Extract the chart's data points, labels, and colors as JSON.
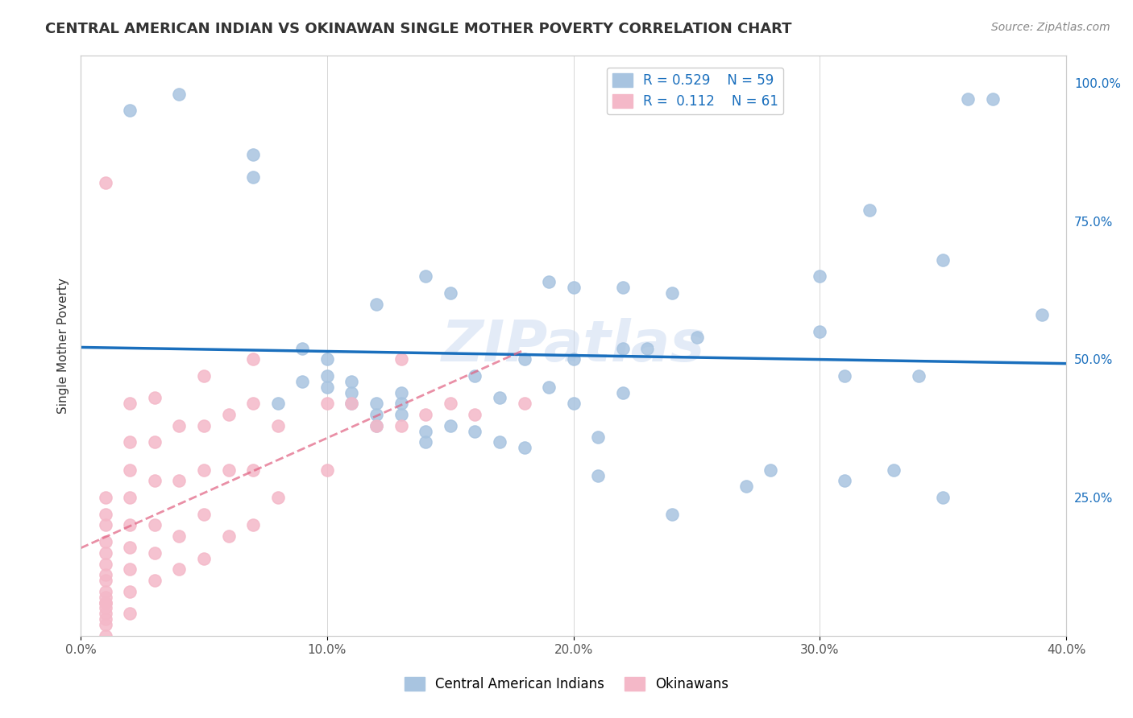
{
  "title": "CENTRAL AMERICAN INDIAN VS OKINAWAN SINGLE MOTHER POVERTY CORRELATION CHART",
  "source": "Source: ZipAtlas.com",
  "xlabel": "",
  "ylabel": "Single Mother Poverty",
  "xlim": [
    0.0,
    0.4
  ],
  "ylim": [
    0.0,
    1.05
  ],
  "xticks": [
    0.0,
    0.1,
    0.2,
    0.3,
    0.4
  ],
  "xtick_labels": [
    "0.0%",
    "10.0%",
    "20.0%",
    "30.0%",
    "40.0%"
  ],
  "yticks": [
    0.0,
    0.25,
    0.5,
    0.75,
    1.0
  ],
  "ytick_labels": [
    "",
    "25.0%",
    "50.0%",
    "75.0%",
    "100.0%"
  ],
  "legend_blue_R": "0.529",
  "legend_blue_N": "59",
  "legend_pink_R": "0.112",
  "legend_pink_N": "61",
  "legend_labels": [
    "Central American Indians",
    "Okinawans"
  ],
  "watermark": "ZIPatlas",
  "blue_color": "#a8c4e0",
  "blue_line_color": "#1a6fbd",
  "pink_color": "#f4b8c8",
  "pink_line_color": "#e06080",
  "grid_color": "#cccccc",
  "blue_scatter_x": [
    0.02,
    0.04,
    0.07,
    0.07,
    0.08,
    0.09,
    0.09,
    0.1,
    0.1,
    0.1,
    0.11,
    0.11,
    0.11,
    0.12,
    0.12,
    0.12,
    0.12,
    0.13,
    0.13,
    0.13,
    0.14,
    0.14,
    0.14,
    0.15,
    0.15,
    0.16,
    0.16,
    0.17,
    0.17,
    0.18,
    0.18,
    0.19,
    0.19,
    0.2,
    0.2,
    0.2,
    0.21,
    0.21,
    0.22,
    0.22,
    0.22,
    0.23,
    0.24,
    0.24,
    0.25,
    0.27,
    0.28,
    0.3,
    0.3,
    0.31,
    0.31,
    0.32,
    0.33,
    0.34,
    0.35,
    0.35,
    0.36,
    0.37,
    0.39
  ],
  "blue_scatter_y": [
    0.95,
    0.98,
    0.83,
    0.87,
    0.42,
    0.46,
    0.52,
    0.45,
    0.47,
    0.5,
    0.42,
    0.44,
    0.46,
    0.38,
    0.4,
    0.42,
    0.6,
    0.4,
    0.42,
    0.44,
    0.35,
    0.37,
    0.65,
    0.38,
    0.62,
    0.37,
    0.47,
    0.35,
    0.43,
    0.34,
    0.5,
    0.45,
    0.64,
    0.42,
    0.5,
    0.63,
    0.29,
    0.36,
    0.44,
    0.52,
    0.63,
    0.52,
    0.22,
    0.62,
    0.54,
    0.27,
    0.3,
    0.65,
    0.55,
    0.28,
    0.47,
    0.77,
    0.3,
    0.47,
    0.25,
    0.68,
    0.97,
    0.97,
    0.58
  ],
  "pink_scatter_x": [
    0.01,
    0.01,
    0.01,
    0.01,
    0.01,
    0.01,
    0.01,
    0.01,
    0.01,
    0.01,
    0.01,
    0.01,
    0.01,
    0.01,
    0.01,
    0.01,
    0.01,
    0.01,
    0.02,
    0.02,
    0.02,
    0.02,
    0.02,
    0.02,
    0.02,
    0.02,
    0.02,
    0.03,
    0.03,
    0.03,
    0.03,
    0.03,
    0.03,
    0.04,
    0.04,
    0.04,
    0.04,
    0.05,
    0.05,
    0.05,
    0.05,
    0.05,
    0.06,
    0.06,
    0.06,
    0.07,
    0.07,
    0.07,
    0.07,
    0.08,
    0.08,
    0.1,
    0.1,
    0.11,
    0.12,
    0.13,
    0.13,
    0.14,
    0.15,
    0.16,
    0.18
  ],
  "pink_scatter_y": [
    0.0,
    0.02,
    0.03,
    0.04,
    0.05,
    0.06,
    0.06,
    0.07,
    0.08,
    0.1,
    0.11,
    0.13,
    0.15,
    0.17,
    0.2,
    0.22,
    0.25,
    0.82,
    0.04,
    0.08,
    0.12,
    0.16,
    0.2,
    0.25,
    0.3,
    0.35,
    0.42,
    0.1,
    0.15,
    0.2,
    0.28,
    0.35,
    0.43,
    0.12,
    0.18,
    0.28,
    0.38,
    0.14,
    0.22,
    0.3,
    0.38,
    0.47,
    0.18,
    0.3,
    0.4,
    0.2,
    0.3,
    0.42,
    0.5,
    0.25,
    0.38,
    0.3,
    0.42,
    0.42,
    0.38,
    0.38,
    0.5,
    0.4,
    0.42,
    0.4,
    0.42
  ]
}
